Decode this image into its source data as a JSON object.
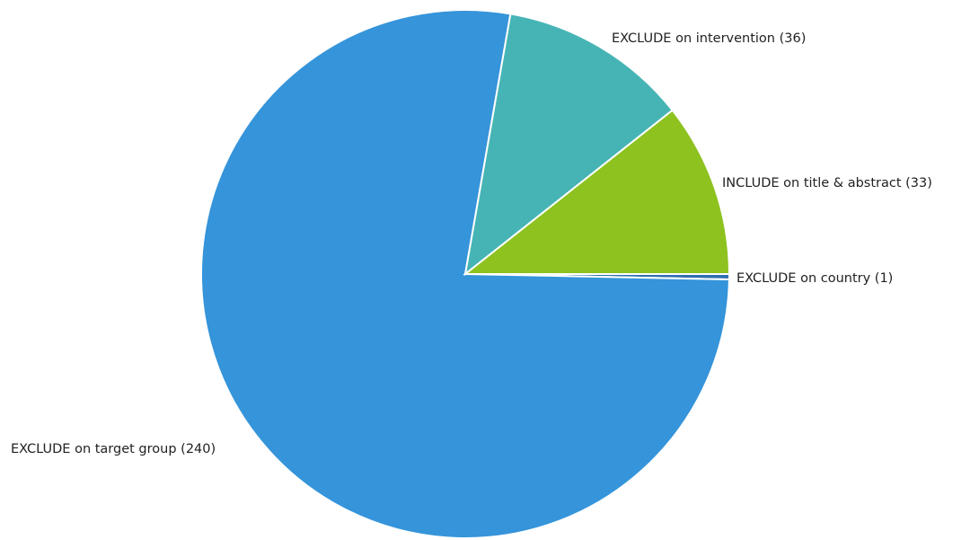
{
  "chart_data": {
    "type": "pie",
    "title": "",
    "slices": [
      {
        "label": "EXCLUDE on target group (240)",
        "name": "EXCLUDE on target group",
        "value": 240,
        "color": "#3594DA"
      },
      {
        "label": "EXCLUDE on intervention (36)",
        "name": "EXCLUDE on intervention",
        "value": 36,
        "color": "#46B4B4"
      },
      {
        "label": "INCLUDE on title & abstract (33)",
        "name": "INCLUDE on title & abstract",
        "value": 33,
        "color": "#8DC21F"
      },
      {
        "label": "EXCLUDE on country (1)",
        "name": "EXCLUDE on country",
        "value": 1,
        "color": "#2E6FB0"
      }
    ],
    "legend": "none"
  }
}
